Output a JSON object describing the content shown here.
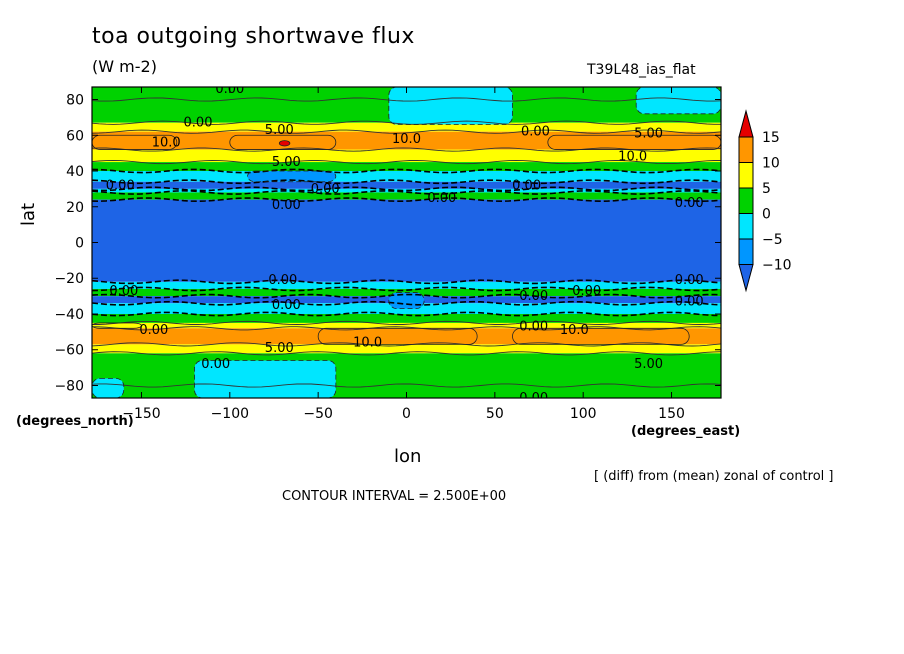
{
  "chart_data": {
    "type": "heatmap",
    "title": "toa outgoing shortwave flux",
    "units": "(W m-2)",
    "run_label": "T39L48_ias_flat",
    "xlabel": "lon",
    "ylabel": "lat",
    "x_unit_label": "(degrees_east)",
    "y_unit_label": "(degrees_north)",
    "note": "[ (diff) from (mean) zonal of control ]",
    "contour_interval_text": "CONTOUR INTERVAL = 2.500E+00",
    "xlim": [
      -178,
      178
    ],
    "ylim": [
      -87,
      87
    ],
    "xticks": [
      -150,
      -100,
      -50,
      0,
      50,
      100,
      150
    ],
    "xtick_labels": [
      "−150",
      "−100",
      "−50",
      "0",
      "50",
      "100",
      "150"
    ],
    "yticks": [
      -80,
      -60,
      -40,
      -20,
      0,
      20,
      40,
      60,
      80
    ],
    "ytick_labels": [
      "−80",
      "−60",
      "−40",
      "−20",
      "0",
      "20",
      "40",
      "60",
      "80"
    ],
    "colorbar": {
      "levels": [
        -10,
        -5,
        0,
        5,
        10,
        15
      ],
      "labels": [
        "−10",
        "−5",
        "0",
        "5",
        "10",
        "15"
      ],
      "colors": [
        "#1e64e6",
        "#0096ff",
        "#00e6ff",
        "#00d200",
        "#ffff00",
        "#ff9600",
        "#e60000"
      ]
    },
    "zonal_bands": [
      {
        "from": 80,
        "to": 87,
        "value": 0.5
      },
      {
        "from": 67,
        "to": 80,
        "value": 1.5
      },
      {
        "from": 62,
        "to": 67,
        "value": 6
      },
      {
        "from": 52,
        "to": 62,
        "value": 11
      },
      {
        "from": 45,
        "to": 52,
        "value": 6
      },
      {
        "from": 40,
        "to": 45,
        "value": 1.5
      },
      {
        "from": 34,
        "to": 40,
        "value": -4
      },
      {
        "from": 30,
        "to": 34,
        "value": -11
      },
      {
        "from": 28,
        "to": 30,
        "value": -3
      },
      {
        "from": 24,
        "to": 28,
        "value": 2
      },
      {
        "from": -22,
        "to": 24,
        "value": -11
      },
      {
        "from": -26,
        "to": -22,
        "value": -3
      },
      {
        "from": -30,
        "to": -26,
        "value": 2
      },
      {
        "from": -34,
        "to": -30,
        "value": -11
      },
      {
        "from": -40,
        "to": -34,
        "value": -4
      },
      {
        "from": -45,
        "to": -40,
        "value": 1.5
      },
      {
        "from": -48,
        "to": -45,
        "value": 6
      },
      {
        "from": -57,
        "to": -48,
        "value": 11
      },
      {
        "from": -62,
        "to": -57,
        "value": 6
      },
      {
        "from": -80,
        "to": -62,
        "value": 1.5
      },
      {
        "from": -87,
        "to": -80,
        "value": 0.5
      }
    ],
    "patches": [
      {
        "lon": [
          -10,
          60
        ],
        "lat": [
          66,
          87
        ],
        "value": -2
      },
      {
        "lon": [
          130,
          178
        ],
        "lat": [
          72,
          87
        ],
        "value": -2
      },
      {
        "lon": [
          -120,
          -40
        ],
        "lat": [
          -87,
          -66
        ],
        "value": -2
      },
      {
        "lon": [
          -178,
          -160
        ],
        "lat": [
          -87,
          -76
        ],
        "value": -2
      },
      {
        "lon": [
          -178,
          -130
        ],
        "lat": [
          52,
          60
        ],
        "value": 12
      },
      {
        "lon": [
          -100,
          -40
        ],
        "lat": [
          52,
          60
        ],
        "value": 12
      },
      {
        "lon": [
          -72,
          -66
        ],
        "lat": [
          54,
          57
        ],
        "value": 16
      },
      {
        "lon": [
          80,
          178
        ],
        "lat": [
          52,
          60
        ],
        "value": 12
      },
      {
        "lon": [
          -50,
          40
        ],
        "lat": [
          -57,
          -48
        ],
        "value": 12
      },
      {
        "lon": [
          60,
          160
        ],
        "lat": [
          -57,
          -48
        ],
        "value": 12
      },
      {
        "lon": [
          -178,
          -150
        ],
        "lat": [
          -48,
          -45
        ],
        "value": 8
      },
      {
        "lon": [
          -10,
          10
        ],
        "lat": [
          -37,
          -28
        ],
        "value": -6
      },
      {
        "lon": [
          -90,
          -40
        ],
        "lat": [
          34,
          40
        ],
        "value": -7
      }
    ],
    "contour_labels": [
      {
        "lon": -100,
        "lat": 86,
        "text": "0.00"
      },
      {
        "lon": -118,
        "lat": 67,
        "text": "0.00"
      },
      {
        "lon": -72,
        "lat": 63,
        "text": "5.00"
      },
      {
        "lon": -136,
        "lat": 56,
        "text": "10.0"
      },
      {
        "lon": 0,
        "lat": 58,
        "text": "10.0"
      },
      {
        "lon": 73,
        "lat": 62,
        "text": "0.00"
      },
      {
        "lon": 137,
        "lat": 61,
        "text": "5.00"
      },
      {
        "lon": 128,
        "lat": 48,
        "text": "10.0"
      },
      {
        "lon": -68,
        "lat": 45,
        "text": "5.00"
      },
      {
        "lon": -162,
        "lat": 32,
        "text": "0.00"
      },
      {
        "lon": -46,
        "lat": 30,
        "text": "0.00"
      },
      {
        "lon": 20,
        "lat": 25,
        "text": "0.00"
      },
      {
        "lon": 68,
        "lat": 32,
        "text": "0.00"
      },
      {
        "lon": 160,
        "lat": 22,
        "text": "0.00"
      },
      {
        "lon": -68,
        "lat": 21,
        "text": "0.00"
      },
      {
        "lon": -70,
        "lat": -21,
        "text": "0.00"
      },
      {
        "lon": 160,
        "lat": -21,
        "text": "0.00"
      },
      {
        "lon": -160,
        "lat": -27,
        "text": "0.00"
      },
      {
        "lon": 72,
        "lat": -30,
        "text": "0.00"
      },
      {
        "lon": 102,
        "lat": -27,
        "text": "0.00"
      },
      {
        "lon": -68,
        "lat": -35,
        "text": "0.00"
      },
      {
        "lon": 160,
        "lat": -33,
        "text": "0.00"
      },
      {
        "lon": -143,
        "lat": -49,
        "text": "0.00"
      },
      {
        "lon": 72,
        "lat": -47,
        "text": "0.00"
      },
      {
        "lon": 95,
        "lat": -49,
        "text": "10.0"
      },
      {
        "lon": -22,
        "lat": -56,
        "text": "10.0"
      },
      {
        "lon": -72,
        "lat": -59,
        "text": "5.00"
      },
      {
        "lon": -108,
        "lat": -68,
        "text": "0.00"
      },
      {
        "lon": 137,
        "lat": -68,
        "text": "5.00"
      },
      {
        "lon": 72,
        "lat": -87,
        "text": "0.00"
      }
    ]
  }
}
